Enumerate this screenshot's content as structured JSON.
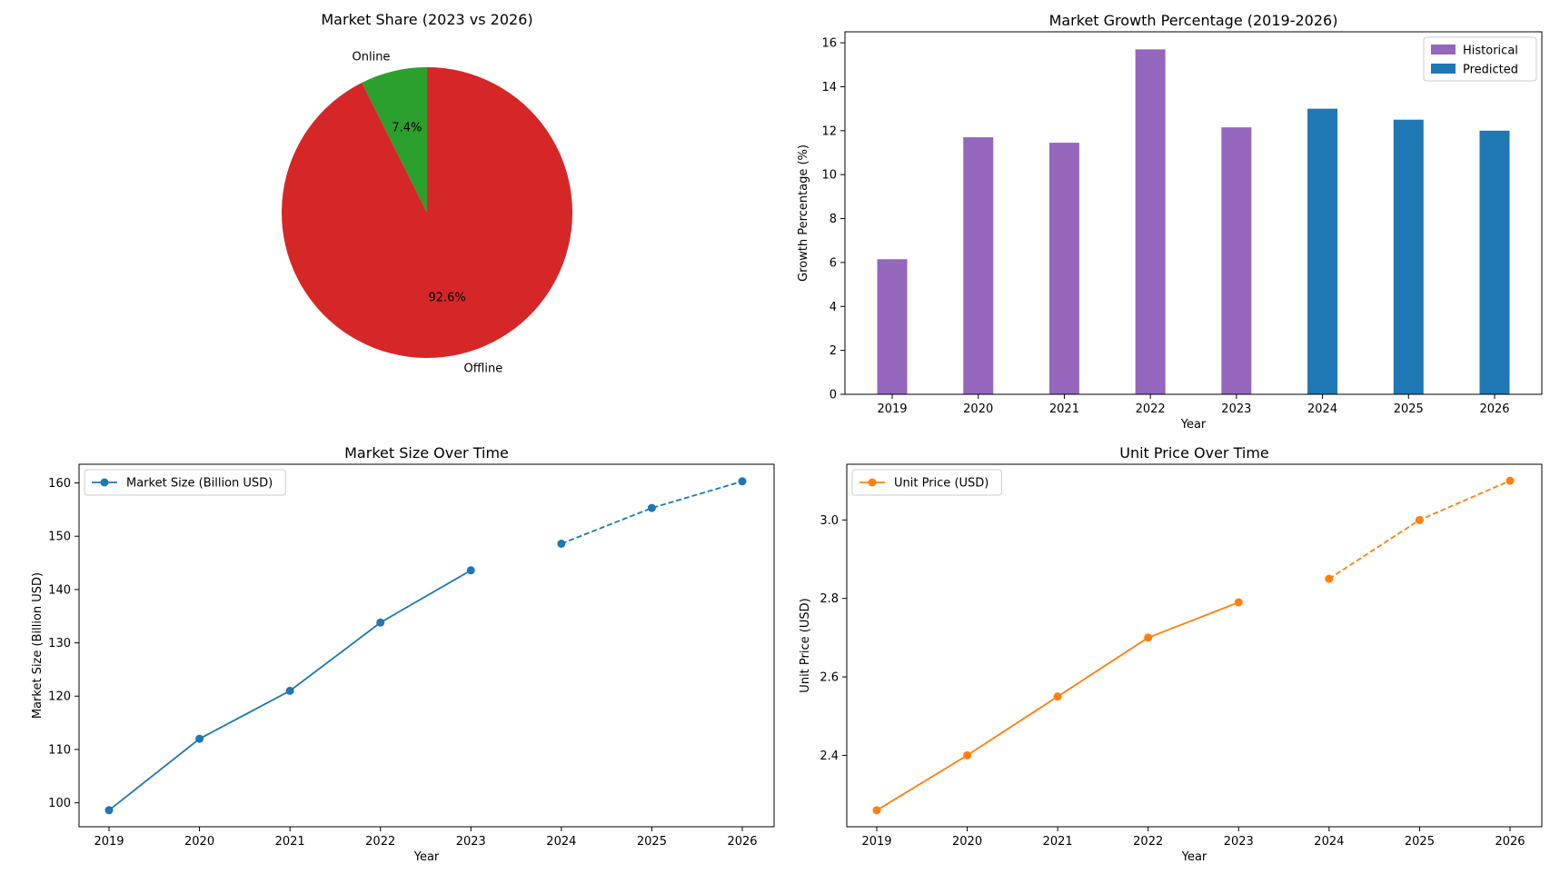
{
  "chart_data": [
    {
      "id": "pie",
      "type": "pie",
      "title": "Market Share (2023 vs 2026)",
      "slices": [
        {
          "label": "Online",
          "value": 7.4,
          "pct_label": "7.4%",
          "color": "#2ca02c"
        },
        {
          "label": "Offline",
          "value": 92.6,
          "pct_label": "92.6%",
          "color": "#d62728"
        }
      ]
    },
    {
      "id": "growth",
      "type": "bar",
      "title": "Market Growth Percentage (2019-2026)",
      "xlabel": "Year",
      "ylabel": "Growth Percentage (%)",
      "ylim": [
        0,
        16.5
      ],
      "yticks": [
        0,
        2,
        4,
        6,
        8,
        10,
        12,
        14,
        16
      ],
      "categories": [
        "2019",
        "2020",
        "2021",
        "2022",
        "2023",
        "2024",
        "2025",
        "2026"
      ],
      "series": [
        {
          "name": "Historical",
          "color": "#9467bd",
          "values": [
            6.15,
            11.7,
            11.45,
            15.7,
            12.15,
            null,
            null,
            null
          ]
        },
        {
          "name": "Predicted",
          "color": "#1f77b4",
          "values": [
            null,
            null,
            null,
            null,
            null,
            13.0,
            12.5,
            12.0
          ]
        }
      ],
      "legend": "top-right"
    },
    {
      "id": "size",
      "type": "line",
      "title": "Market Size Over Time",
      "xlabel": "Year",
      "ylabel": "Market Size (Billion USD)",
      "ylim": [
        95.5,
        163.5
      ],
      "yticks": [
        100,
        110,
        120,
        130,
        140,
        150,
        160
      ],
      "x": [
        2019,
        2020,
        2021,
        2022,
        2023,
        2024,
        2025,
        2026
      ],
      "series": [
        {
          "name": "Market Size (Billion USD)",
          "color": "#1f77b4",
          "historical": {
            "x": [
              2019,
              2020,
              2021,
              2022,
              2023
            ],
            "values": [
              98.6,
              112.0,
              121.0,
              133.8,
              143.6
            ]
          },
          "predicted": {
            "x": [
              2024,
              2025,
              2026
            ],
            "values": [
              148.6,
              155.3,
              160.3
            ]
          }
        }
      ],
      "legend": "top-left"
    },
    {
      "id": "price",
      "type": "line",
      "title": "Unit Price Over Time",
      "xlabel": "Year",
      "ylabel": "Unit Price (USD)",
      "ylim": [
        2.218,
        3.142
      ],
      "yticks": [
        2.4,
        2.6,
        2.8,
        3.0
      ],
      "ytick_labels": [
        "2.4",
        "2.6",
        "2.8",
        "3.0"
      ],
      "x": [
        2019,
        2020,
        2021,
        2022,
        2023,
        2024,
        2025,
        2026
      ],
      "series": [
        {
          "name": "Unit Price (USD)",
          "color": "#ff7f0e",
          "historical": {
            "x": [
              2019,
              2020,
              2021,
              2022,
              2023
            ],
            "values": [
              2.26,
              2.4,
              2.55,
              2.7,
              2.79
            ]
          },
          "predicted": {
            "x": [
              2024,
              2025,
              2026
            ],
            "values": [
              2.85,
              3.0,
              3.1
            ]
          }
        }
      ],
      "legend": "top-left"
    }
  ]
}
